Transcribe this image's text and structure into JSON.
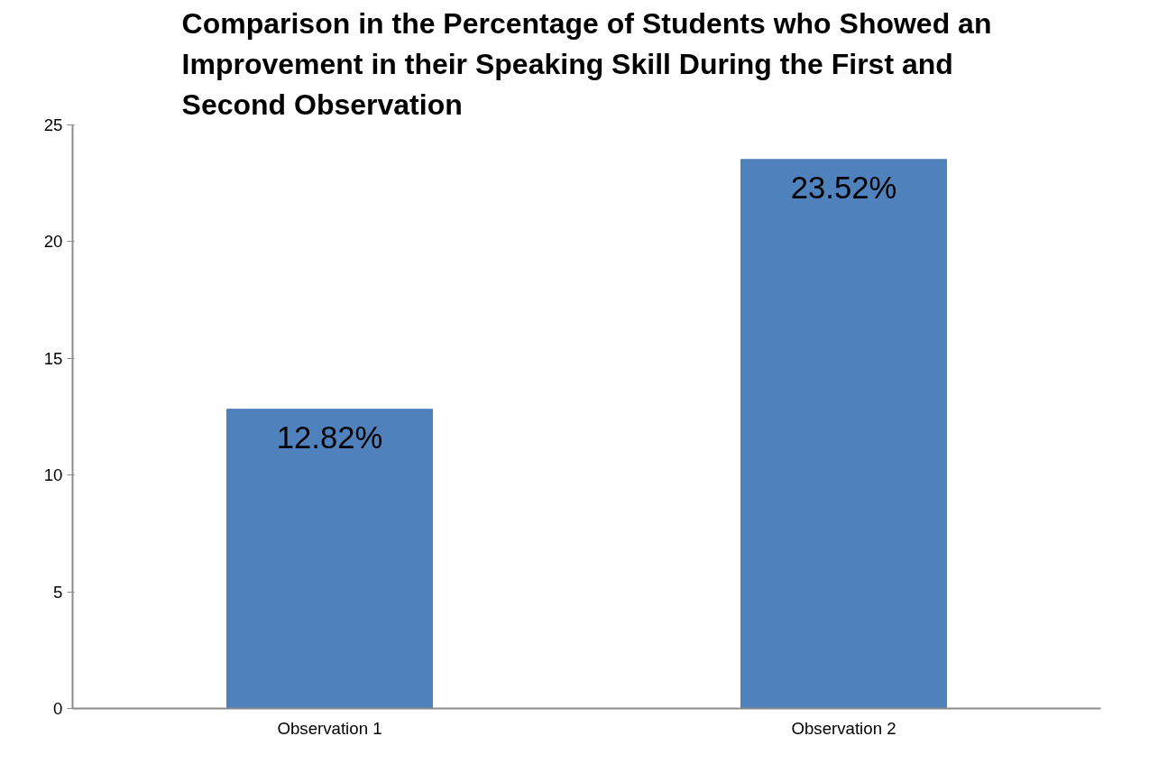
{
  "chart_data": {
    "type": "bar",
    "title": "Comparison in the Percentage of Students who Showed an Improvement  in their Speaking Skill During the First and Second Observation",
    "categories": [
      "Observation 1",
      "Observation 2"
    ],
    "values": [
      12.82,
      23.52
    ],
    "value_labels": [
      "12.82%",
      "23.52%"
    ],
    "color": "#4f81bd",
    "ylim": [
      0,
      25
    ],
    "yticks": [
      0,
      5,
      10,
      15,
      20,
      25
    ],
    "grid": false
  }
}
